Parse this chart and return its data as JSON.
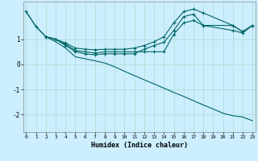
{
  "xlabel": "Humidex (Indice chaleur)",
  "background_color": "#cceeff",
  "grid_color": "#aaddcc",
  "line_color": "#006666",
  "x_ticks": [
    0,
    1,
    2,
    3,
    4,
    5,
    6,
    7,
    8,
    9,
    10,
    11,
    12,
    13,
    14,
    15,
    16,
    17,
    18,
    19,
    20,
    21,
    22,
    23
  ],
  "y_ticks": [
    -2,
    -1,
    0,
    1
  ],
  "ylim": [
    -2.7,
    2.5
  ],
  "xlim": [
    -0.3,
    23.3
  ],
  "series": [
    {
      "x": [
        0,
        1,
        2,
        3,
        4,
        5,
        6,
        7,
        8,
        9,
        10,
        11,
        12,
        13,
        14,
        15,
        16,
        17,
        18,
        19,
        20,
        21,
        22,
        23
      ],
      "y": [
        2.1,
        1.5,
        1.1,
        0.9,
        0.65,
        0.3,
        0.22,
        0.14,
        0.05,
        -0.1,
        -0.28,
        -0.45,
        -0.62,
        -0.78,
        -0.95,
        -1.12,
        -1.28,
        -1.45,
        -1.62,
        -1.78,
        -1.95,
        -2.05,
        -2.1,
        -2.25
      ],
      "has_markers": false
    },
    {
      "x": [
        0,
        1,
        2,
        3,
        4,
        5,
        6,
        7,
        8,
        9,
        10,
        11,
        12,
        13,
        14,
        15,
        16,
        17,
        18,
        21,
        22,
        23
      ],
      "y": [
        2.1,
        1.5,
        1.1,
        1.0,
        0.85,
        0.65,
        0.6,
        0.58,
        0.6,
        0.6,
        0.6,
        0.65,
        0.75,
        0.9,
        1.1,
        1.65,
        2.1,
        2.2,
        2.05,
        1.55,
        1.3,
        1.55
      ],
      "has_markers": true
    },
    {
      "x": [
        2,
        3,
        4,
        5,
        6,
        7,
        8,
        9,
        10,
        11,
        12,
        13,
        14,
        15,
        16,
        17,
        18,
        21,
        22,
        23
      ],
      "y": [
        1.1,
        1.0,
        0.8,
        0.55,
        0.5,
        0.45,
        0.5,
        0.5,
        0.5,
        0.5,
        0.5,
        0.5,
        0.5,
        1.2,
        1.65,
        1.75,
        1.55,
        1.55,
        1.3,
        1.55
      ],
      "has_markers": true
    },
    {
      "x": [
        2,
        3,
        4,
        5,
        6,
        7,
        8,
        9,
        10,
        11,
        12,
        13,
        14,
        15,
        16,
        17,
        18,
        21,
        22,
        23
      ],
      "y": [
        1.1,
        1.0,
        0.75,
        0.5,
        0.42,
        0.38,
        0.42,
        0.42,
        0.42,
        0.42,
        0.6,
        0.75,
        0.88,
        1.35,
        1.9,
        2.0,
        1.55,
        1.35,
        1.25,
        1.55
      ],
      "has_markers": true
    }
  ]
}
